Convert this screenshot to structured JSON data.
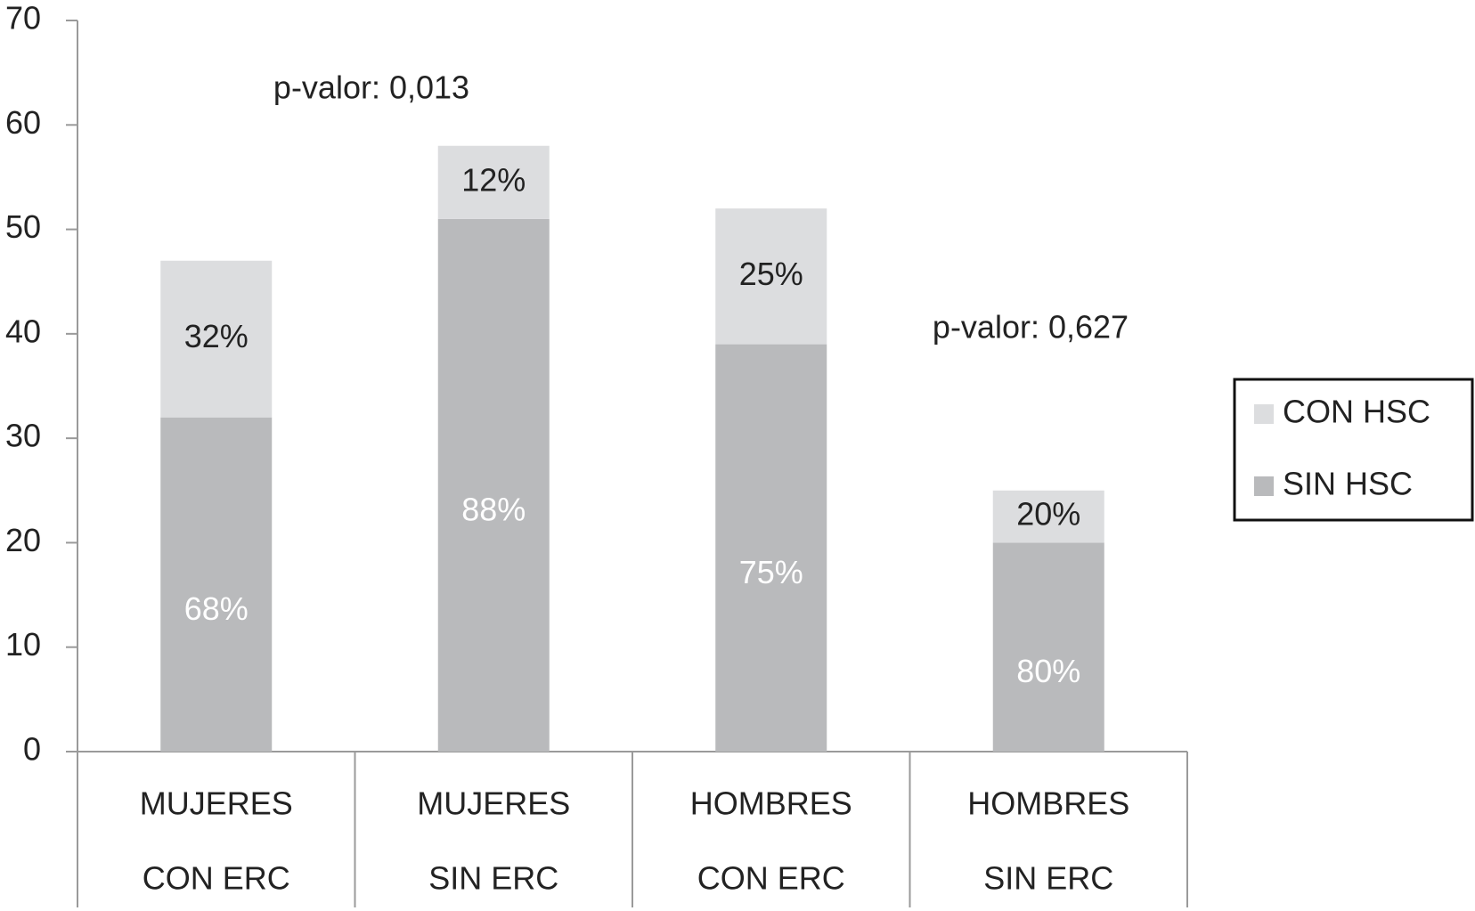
{
  "chart_data": {
    "type": "stacked_bar",
    "categories": [
      [
        "MUJERES",
        "CON ERC"
      ],
      [
        "MUJERES",
        "SIN ERC"
      ],
      [
        "HOMBRES",
        "CON ERC"
      ],
      [
        "HOMBRES",
        "SIN ERC"
      ]
    ],
    "series": [
      {
        "name": "SIN HSC",
        "color": "#b9babc",
        "label_color": "#ffffff",
        "values": [
          32,
          51,
          39,
          20
        ],
        "percent_labels": [
          "68%",
          "88%",
          "75%",
          "80%"
        ]
      },
      {
        "name": "CON HSC",
        "color": "#dcdddf",
        "label_color": "#222222",
        "values": [
          15,
          7,
          13,
          5
        ],
        "percent_labels": [
          "32%",
          "12%",
          "25%",
          "20%"
        ]
      }
    ],
    "annotations": [
      "p-valor: 0,013",
      "p-valor: 0,627"
    ],
    "ylim": [
      0,
      70
    ],
    "yticks": [
      0,
      10,
      20,
      30,
      40,
      50,
      60,
      70
    ],
    "legend": "right"
  }
}
